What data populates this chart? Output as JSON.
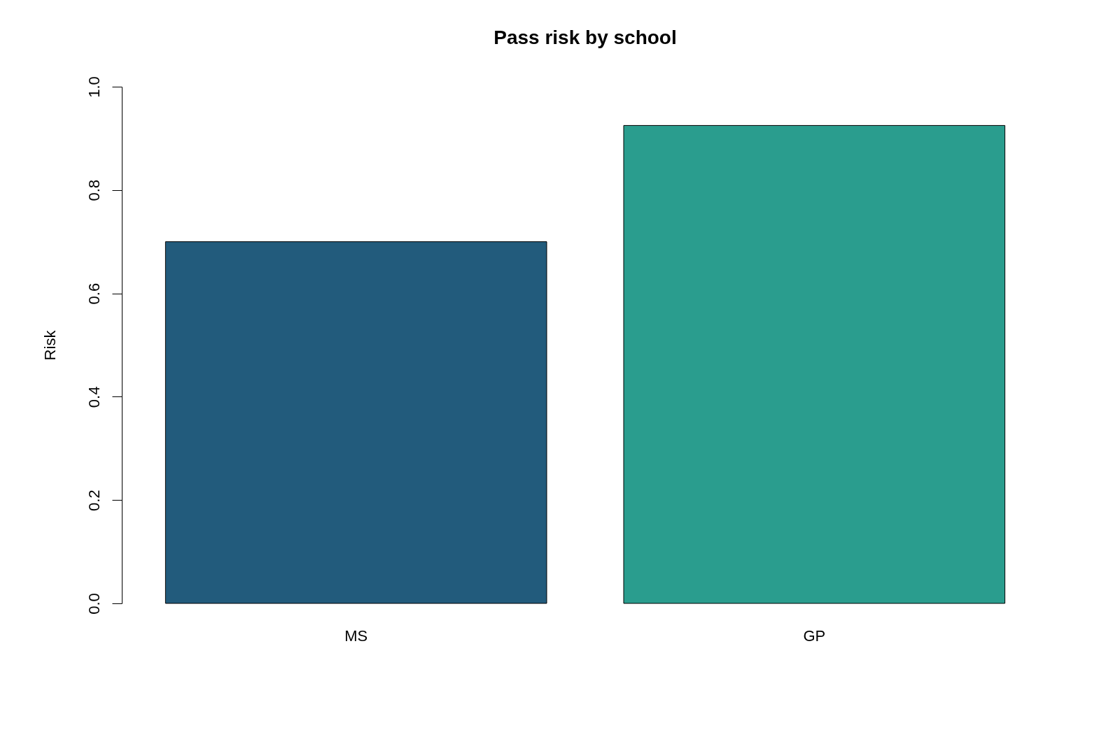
{
  "chart_data": {
    "type": "bar",
    "title": "Pass risk by school",
    "ylabel": "Risk",
    "categories": [
      "MS",
      "GP"
    ],
    "values": [
      0.7,
      0.925
    ],
    "colors": [
      "#225b7c",
      "#2a9d8e"
    ],
    "ylim": [
      0,
      1
    ],
    "yticks": [
      {
        "value": 0,
        "label": "0.0"
      },
      {
        "value": 0.2,
        "label": "0.2"
      },
      {
        "value": 0.4,
        "label": "0.4"
      },
      {
        "value": 0.6,
        "label": "0.6"
      },
      {
        "value": 0.8,
        "label": "0.8"
      },
      {
        "value": 1,
        "label": "1.0"
      }
    ],
    "grid": false
  }
}
